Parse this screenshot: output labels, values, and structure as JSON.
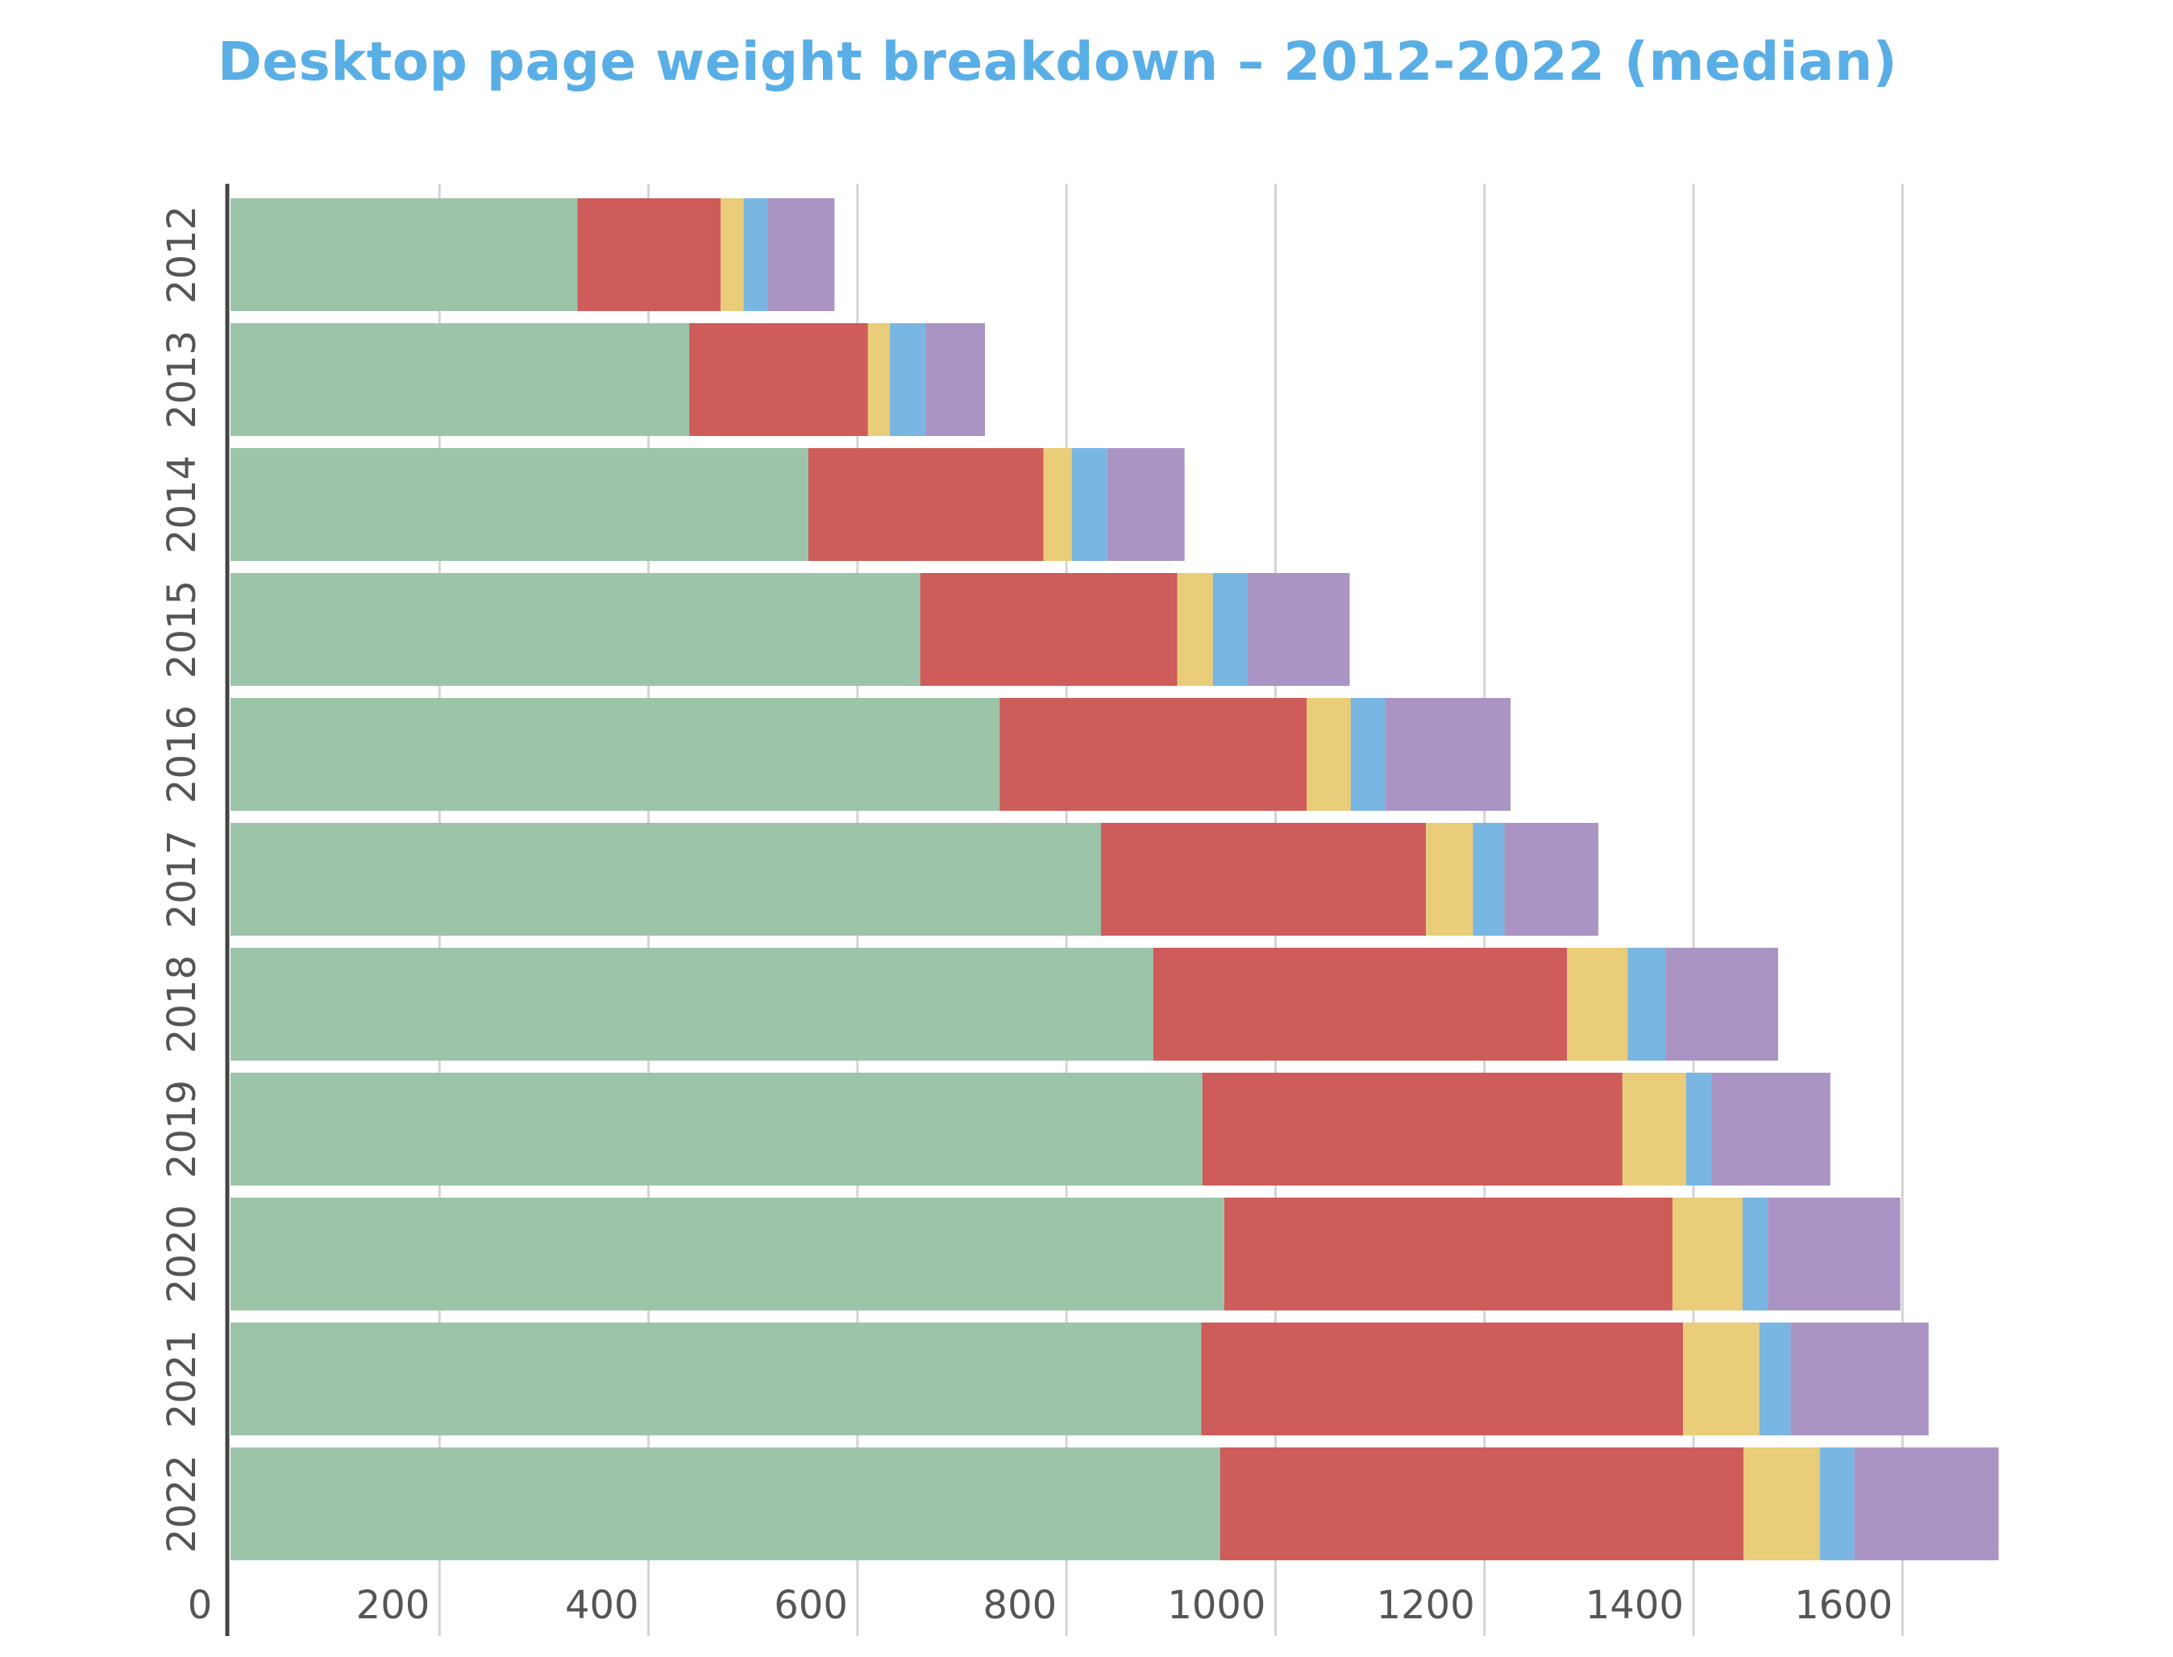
{
  "chart_data": {
    "type": "bar",
    "orientation": "horizontal",
    "stacked": true,
    "title": "Desktop page weight breakdown – 2012-2022 (median)",
    "categories": [
      "2012",
      "2013",
      "2014",
      "2015",
      "2016",
      "2017",
      "2018",
      "2019",
      "2020",
      "2021",
      "2022"
    ],
    "series": [
      {
        "color": "#9cc4a9",
        "values": [
          332,
          439,
          553,
          660,
          736,
          833,
          883,
          930,
          951,
          929,
          947
        ]
      },
      {
        "color": "#cd5c5a",
        "values": [
          137,
          171,
          225,
          246,
          294,
          311,
          396,
          402,
          429,
          461,
          501
        ]
      },
      {
        "color": "#e9cd78",
        "values": [
          22,
          21,
          27,
          34,
          42,
          45,
          58,
          61,
          67,
          73,
          73
        ]
      },
      {
        "color": "#79b6e2",
        "values": [
          23,
          34,
          34,
          33,
          33,
          30,
          36,
          24,
          24,
          30,
          33
        ]
      },
      {
        "color": "#a994c3",
        "values": [
          64,
          57,
          74,
          98,
          120,
          90,
          108,
          114,
          127,
          132,
          138
        ]
      }
    ],
    "xlim": [
      0,
      1700
    ],
    "xticks": [
      "0",
      "200",
      "400",
      "600",
      "800",
      "1000",
      "1200",
      "1400",
      "1600"
    ],
    "xtick_values": [
      0,
      200,
      400,
      600,
      800,
      1000,
      1200,
      1400,
      1600
    ],
    "grid": true
  }
}
